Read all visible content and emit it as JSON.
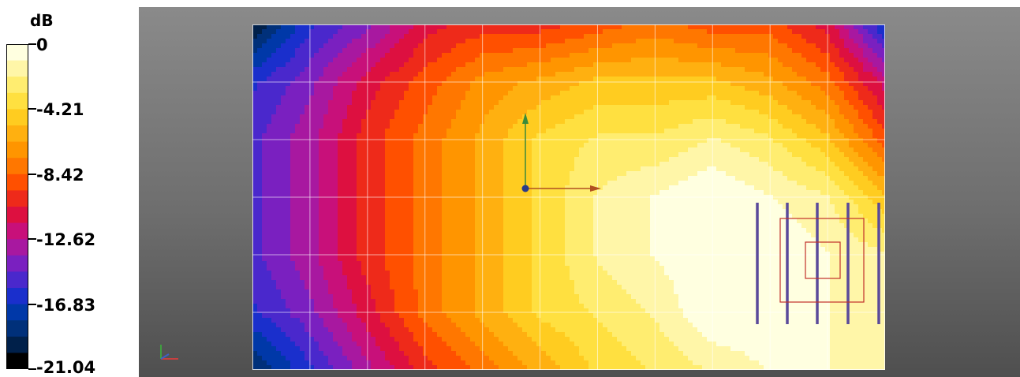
{
  "chart_data": {
    "type": "heatmap",
    "title": "",
    "colorbar": {
      "unit": "dB",
      "tick_labels": [
        "0",
        "-4.21",
        "-8.42",
        "-12.62",
        "-16.83",
        "-21.04"
      ],
      "range": [
        -21.04,
        0
      ],
      "bands": [
        "#ffffe0",
        "#fff6a8",
        "#ffed70",
        "#ffe040",
        "#ffcc20",
        "#ffb010",
        "#ff9500",
        "#ff7700",
        "#ff5000",
        "#ee2a1a",
        "#dd1040",
        "#c8107a",
        "#a818a0",
        "#7a20c0",
        "#4a28cc",
        "#1a2fcc",
        "#0038a8",
        "#00307a",
        "#00204a",
        "#000000"
      ]
    },
    "grid": true,
    "grid_columns": 11,
    "grid_rows": 6,
    "levels_dB": [
      [
        -20,
        -16,
        -14,
        -11,
        -10,
        -10,
        -9,
        -8,
        -9,
        -9,
        -11,
        -17
      ],
      [
        -16,
        -14,
        -11,
        -9,
        -7,
        -6,
        -5,
        -5,
        -5,
        -6,
        -8,
        -12
      ],
      [
        -15,
        -13,
        -10,
        -8,
        -6,
        -4,
        -3,
        -3,
        -2,
        -3,
        -5,
        -9
      ],
      [
        -15,
        -13,
        -10,
        -8,
        -6,
        -4,
        -2,
        -1,
        0,
        -1,
        -2,
        -5
      ],
      [
        -15,
        -13,
        -10,
        -8,
        -6,
        -4,
        -2,
        -1,
        0,
        0,
        -1,
        -2
      ],
      [
        -16,
        -14,
        -11,
        -8,
        -6,
        -4,
        -3,
        -2,
        0,
        0,
        -1,
        -2
      ],
      [
        -19,
        -16,
        -13,
        -10,
        -8,
        -6,
        -4,
        -3,
        -2,
        -1,
        -1,
        -2
      ]
    ]
  }
}
